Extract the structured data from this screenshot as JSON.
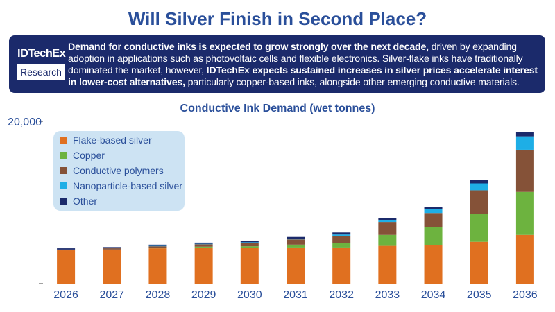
{
  "header": {
    "title": "Will Silver Finish in Second Place?"
  },
  "banner": {
    "logo_top": "IDTechEx",
    "logo_bottom": "Research",
    "seg1_bold": "Demand for conductive inks is expected to grow strongly over the next decade,",
    "seg2": " driven by expanding adoption in applications such as photovoltaic cells and flexible electronics. Silver-flake inks have traditionally dominated the market, however, ",
    "seg3_bold": "IDTechEx expects sustained increases in silver prices accelerate interest in lower-cost alternatives,",
    "seg4": " particularly copper-based inks, alongside other emerging conductive materials."
  },
  "chart_data": {
    "type": "bar",
    "stacked": true,
    "title": "Conductive Ink Demand (wet tonnes)",
    "xlabel": "",
    "ylabel": "",
    "ylim": [
      0,
      20000
    ],
    "yticks": [
      20000
    ],
    "ytick_labels": [
      "20,000"
    ],
    "categories": [
      "2026",
      "2027",
      "2028",
      "2029",
      "2030",
      "2031",
      "2032",
      "2033",
      "2034",
      "2035",
      "2036"
    ],
    "legend_position": "top-left",
    "grid": false,
    "series": [
      {
        "name": "Flake-based silver",
        "color": "#e07020",
        "values": [
          4100,
          4200,
          4350,
          4450,
          4400,
          4450,
          4450,
          4650,
          4750,
          5150,
          6000
        ]
      },
      {
        "name": "Copper",
        "color": "#6db33f",
        "values": [
          0,
          0,
          50,
          100,
          200,
          350,
          550,
          1350,
          2200,
          3400,
          5300
        ]
      },
      {
        "name": "Conductive polymers",
        "color": "#855238",
        "values": [
          100,
          150,
          200,
          300,
          400,
          650,
          900,
          1600,
          1750,
          2950,
          5200
        ]
      },
      {
        "name": "Nanoparticle-based silver",
        "color": "#1eaee6",
        "values": [
          0,
          0,
          50,
          50,
          100,
          100,
          150,
          200,
          450,
          850,
          1650
        ]
      },
      {
        "name": "Other",
        "color": "#1b2a6b",
        "values": [
          150,
          150,
          150,
          150,
          200,
          200,
          250,
          300,
          300,
          400,
          500
        ]
      }
    ]
  }
}
